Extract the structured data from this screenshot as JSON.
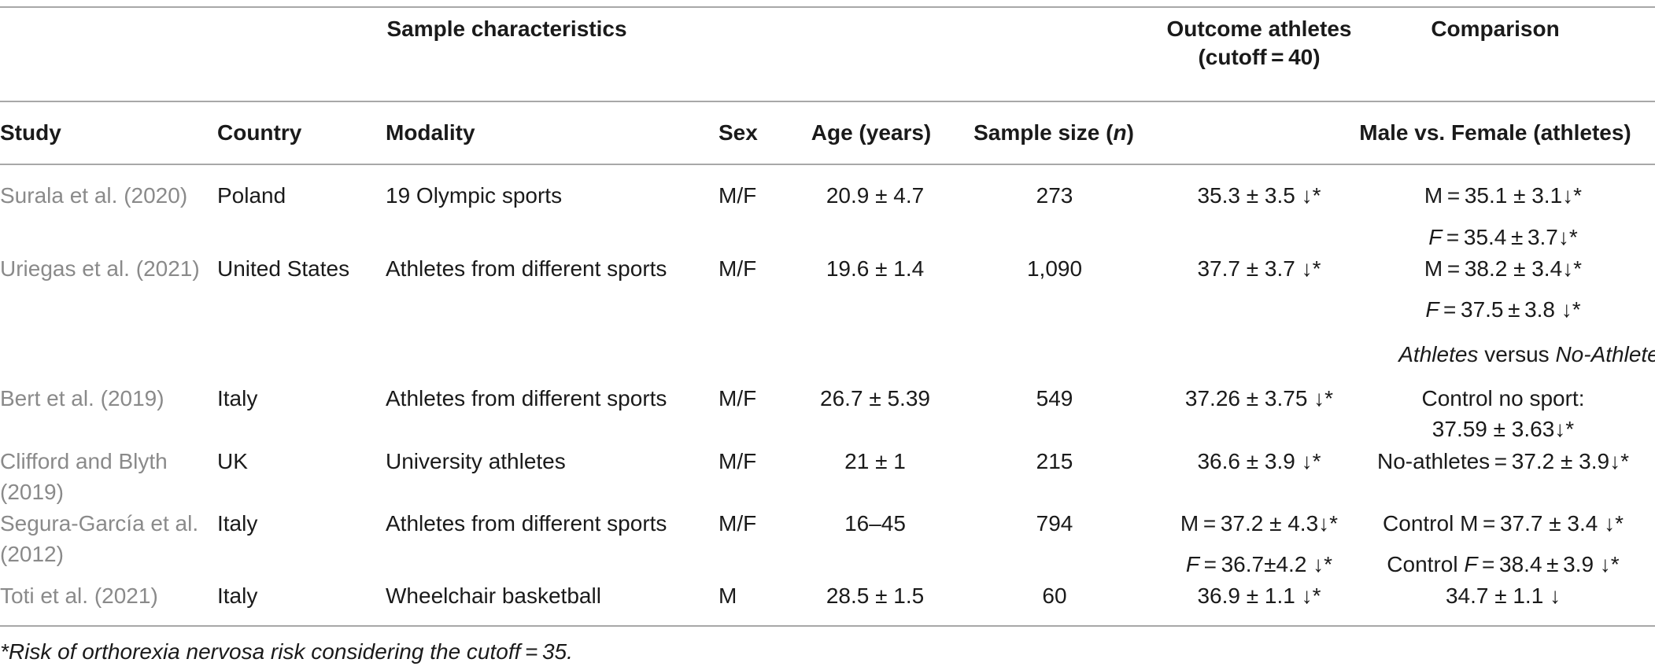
{
  "header": {
    "group_sample": "Sample characteristics",
    "group_outcome_line1": "Outcome athletes",
    "group_outcome_line2": "(cutoff = 40)",
    "group_comparison": "Comparison",
    "col_study": "Study",
    "col_country": "Country",
    "col_modality": "Modality",
    "col_sex": "Sex",
    "col_age": "Age (years)",
    "col_sample_prefix": "Sample size (",
    "col_sample_n": "n",
    "col_sample_suffix": ")",
    "col_comparison": "Male vs. Female (athletes)"
  },
  "rows": [
    {
      "study": "Surala et al. (2020)",
      "country": "Poland",
      "modality": "19 Olympic sports",
      "sex": "M/F",
      "age": "20.9 ± 4.7",
      "n": "273",
      "outcome": "35.3 ± 3.5 ↓*",
      "comp1": "M = 35.1 ± 3.1↓*"
    },
    {
      "comp_f": "F",
      "comp_rest": " = 35.4 ± 3.7↓*"
    },
    {
      "study": "Uriegas et al. (2021)",
      "country": "United States",
      "modality": "Athletes from different sports",
      "sex": "M/F",
      "age": "19.6 ± 1.4",
      "n": "1,090",
      "outcome": "37.7 ± 3.7 ↓*",
      "comp1": "M = 38.2 ± 3.4↓*"
    },
    {
      "comp_f": "F",
      "comp_rest": " = 37.5 ± 3.8 ↓*"
    },
    {
      "sub_a": "Athletes",
      "sub_mid": " versus ",
      "sub_b": "No-Athletes"
    },
    {
      "study": "Bert et al. (2019)",
      "country": "Italy",
      "modality": "Athletes from different sports",
      "sex": "M/F",
      "age": "26.7 ± 5.39",
      "n": "549",
      "outcome": "37.26 ± 3.75 ↓*",
      "comp1": "Control no sport:",
      "comp2": "37.59 ± 3.63↓*"
    },
    {
      "study1": "Clifford and Blyth",
      "study2": "(2019)",
      "country": "UK",
      "modality": "University athletes",
      "sex": "M/F",
      "age": "21 ± 1",
      "n": "215",
      "outcome": "36.6 ± 3.9 ↓*",
      "comp1": "No-athletes = 37.2 ± 3.9↓*"
    },
    {
      "study1": "Segura-García et al.",
      "study2": "(2012)",
      "country": "Italy",
      "modality": "Athletes from different sports",
      "sex": "M/F",
      "age": "16–45",
      "n": "794",
      "outcome": "M = 37.2 ± 4.3↓*",
      "comp1": "Control M = 37.7 ± 3.4 ↓*"
    },
    {
      "outcome_f": "F",
      "outcome_rest": " = 36.7±4.2 ↓*",
      "comp_pre": "Control ",
      "comp_f": "F",
      "comp_rest": " = 38.4 ± 3.9 ↓*"
    },
    {
      "study": "Toti et al. (2021)",
      "country": "Italy",
      "modality": "Wheelchair basketball",
      "sex": "M",
      "age": "28.5 ± 1.5",
      "n": "60",
      "outcome": "36.9 ± 1.1 ↓*",
      "comp1": "34.7 ± 1.1 ↓"
    }
  ],
  "footnote": "*Risk of orthorexia nervosa risk considering the cutoff = 35."
}
